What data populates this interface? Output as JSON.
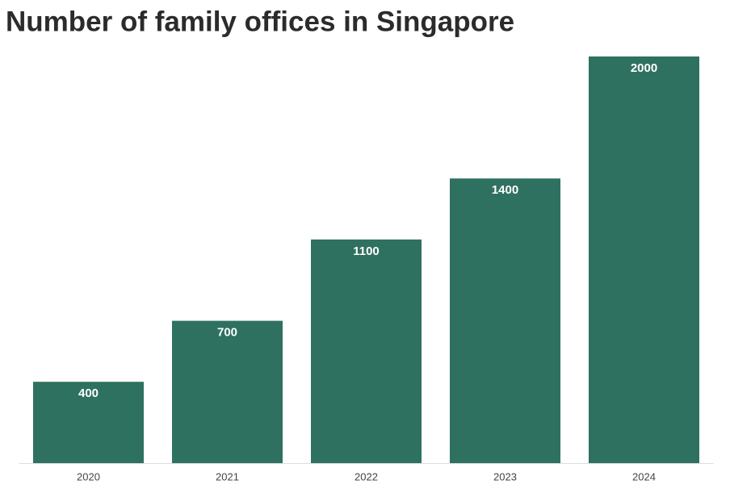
{
  "chart_data": {
    "type": "bar",
    "title": "Number of family offices in Singapore",
    "categories": [
      "2020",
      "2021",
      "2022",
      "2023",
      "2024"
    ],
    "values": [
      400,
      700,
      1100,
      1400,
      2000
    ],
    "color": "#2f7160",
    "ylim": [
      0,
      2000
    ]
  }
}
